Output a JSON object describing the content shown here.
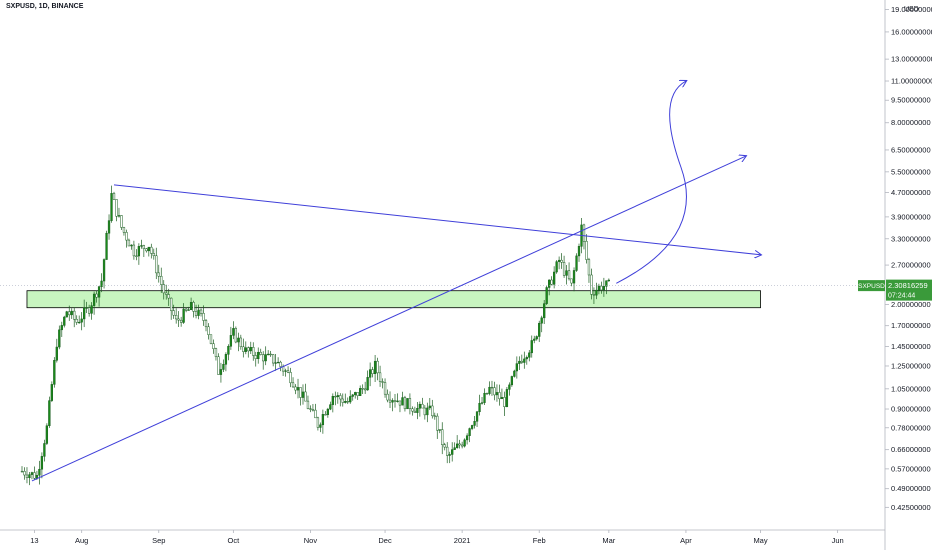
{
  "header": {
    "symbol_line": "SXPUSD, 1D, BINANCE"
  },
  "chart_data": {
    "type": "candlestick",
    "symbol": "SXPUSD",
    "timeframe": "1D",
    "exchange": "BINANCE",
    "currency": "USD",
    "y_scale": "log",
    "ylim": [
      0.38,
      19.5
    ],
    "xlim": [
      "2020-07-08",
      "2021-06-10"
    ],
    "x_ticks": [
      {
        "date": "2020-07-13",
        "label": "13"
      },
      {
        "date": "2020-08-01",
        "label": "Aug"
      },
      {
        "date": "2020-09-01",
        "label": "Sep"
      },
      {
        "date": "2020-10-01",
        "label": "Oct"
      },
      {
        "date": "2020-11-01",
        "label": "Nov"
      },
      {
        "date": "2020-12-01",
        "label": "Dec"
      },
      {
        "date": "2021-01-01",
        "label": "2021"
      },
      {
        "date": "2021-02-01",
        "label": "Feb"
      },
      {
        "date": "2021-03-01",
        "label": "Mar"
      },
      {
        "date": "2021-04-01",
        "label": "Apr"
      },
      {
        "date": "2021-05-01",
        "label": "May"
      },
      {
        "date": "2021-06-01",
        "label": "Jun"
      }
    ],
    "y_ticks": [
      "19.00000000",
      "16.00000000",
      "13.00000000",
      "11.00000000",
      "9.50000000",
      "8.00000000",
      "6.50000000",
      "5.50000000",
      "4.70000000",
      "3.90000000",
      "3.30000000",
      "2.70000000",
      "2.00000000",
      "1.70000000",
      "1.45000000",
      "1.25000000",
      "1.05000000",
      "0.90000000",
      "0.78000000",
      "0.66000000",
      "0.57000000",
      "0.49000000",
      "0.42500000"
    ],
    "y_unit_label": "USD",
    "last_price": {
      "value": 2.30816259,
      "label": "2.30816259",
      "symbol": "SXPUSD",
      "countdown": "07:24:44"
    },
    "grid": false,
    "series": [
      {
        "date": "2020-07-08",
        "price": 0.56
      },
      {
        "date": "2020-07-14",
        "price": 0.54
      },
      {
        "date": "2020-07-18",
        "price": 0.78
      },
      {
        "date": "2020-07-22",
        "price": 1.5
      },
      {
        "date": "2020-07-26",
        "price": 1.9
      },
      {
        "date": "2020-07-30",
        "price": 1.75
      },
      {
        "date": "2020-08-04",
        "price": 1.95
      },
      {
        "date": "2020-08-09",
        "price": 2.4
      },
      {
        "date": "2020-08-13",
        "price": 4.6
      },
      {
        "date": "2020-08-17",
        "price": 3.6
      },
      {
        "date": "2020-08-22",
        "price": 3.0
      },
      {
        "date": "2020-08-28",
        "price": 3.15
      },
      {
        "date": "2020-09-03",
        "price": 2.2
      },
      {
        "date": "2020-09-08",
        "price": 1.75
      },
      {
        "date": "2020-09-14",
        "price": 1.95
      },
      {
        "date": "2020-09-20",
        "price": 1.75
      },
      {
        "date": "2020-09-25",
        "price": 1.2
      },
      {
        "date": "2020-10-01",
        "price": 1.6
      },
      {
        "date": "2020-10-06",
        "price": 1.4
      },
      {
        "date": "2020-10-12",
        "price": 1.35
      },
      {
        "date": "2020-10-18",
        "price": 1.3
      },
      {
        "date": "2020-10-24",
        "price": 1.15
      },
      {
        "date": "2020-10-30",
        "price": 0.95
      },
      {
        "date": "2020-11-04",
        "price": 0.8
      },
      {
        "date": "2020-11-10",
        "price": 1.0
      },
      {
        "date": "2020-11-16",
        "price": 0.95
      },
      {
        "date": "2020-11-22",
        "price": 1.05
      },
      {
        "date": "2020-11-27",
        "price": 1.25
      },
      {
        "date": "2020-12-02",
        "price": 1.0
      },
      {
        "date": "2020-12-08",
        "price": 0.95
      },
      {
        "date": "2020-12-14",
        "price": 0.9
      },
      {
        "date": "2020-12-20",
        "price": 0.88
      },
      {
        "date": "2020-12-26",
        "price": 0.62
      },
      {
        "date": "2021-01-01",
        "price": 0.7
      },
      {
        "date": "2021-01-06",
        "price": 0.85
      },
      {
        "date": "2021-01-12",
        "price": 1.05
      },
      {
        "date": "2021-01-18",
        "price": 0.95
      },
      {
        "date": "2021-01-24",
        "price": 1.3
      },
      {
        "date": "2021-01-30",
        "price": 1.5
      },
      {
        "date": "2021-02-04",
        "price": 2.2
      },
      {
        "date": "2021-02-09",
        "price": 2.8
      },
      {
        "date": "2021-02-14",
        "price": 2.3
      },
      {
        "date": "2021-02-18",
        "price": 3.6
      },
      {
        "date": "2021-02-22",
        "price": 2.2
      },
      {
        "date": "2021-02-26",
        "price": 2.3
      },
      {
        "date": "2021-03-02",
        "price": 2.31
      }
    ],
    "annotations": [
      {
        "type": "rectangle",
        "name": "support-zone",
        "x0": "2020-07-10",
        "x1": "2021-05-01",
        "y0": 1.95,
        "y1": 2.22,
        "fill": "#c8f5c0",
        "stroke": "#000000"
      },
      {
        "type": "trendline",
        "name": "ascending-trendline",
        "from": {
          "date": "2020-07-12",
          "price": 0.52
        },
        "to": {
          "date": "2021-04-25",
          "price": 6.2
        },
        "arrow": true,
        "color": "#3f3fd9"
      },
      {
        "type": "trendline",
        "name": "descending-trendline",
        "from": {
          "date": "2020-08-14",
          "price": 4.98
        },
        "to": {
          "date": "2021-05-01",
          "price": 2.92
        },
        "arrow": true,
        "color": "#3f3fd9"
      },
      {
        "type": "curve-arrow",
        "name": "projection-arrow",
        "from": {
          "date": "2021-03-04",
          "price": 2.35
        },
        "via": {
          "date": "2021-03-26",
          "price": 3.6
        },
        "to": {
          "date": "2021-04-01",
          "price": 11.0
        },
        "color": "#3f3fd9"
      }
    ],
    "colors": {
      "up": "#26a69a",
      "candle": "#1a8a1a",
      "line": "#3f3fd9",
      "zone": "#c8f5c0",
      "price_tag": "#3a9a3a"
    }
  }
}
